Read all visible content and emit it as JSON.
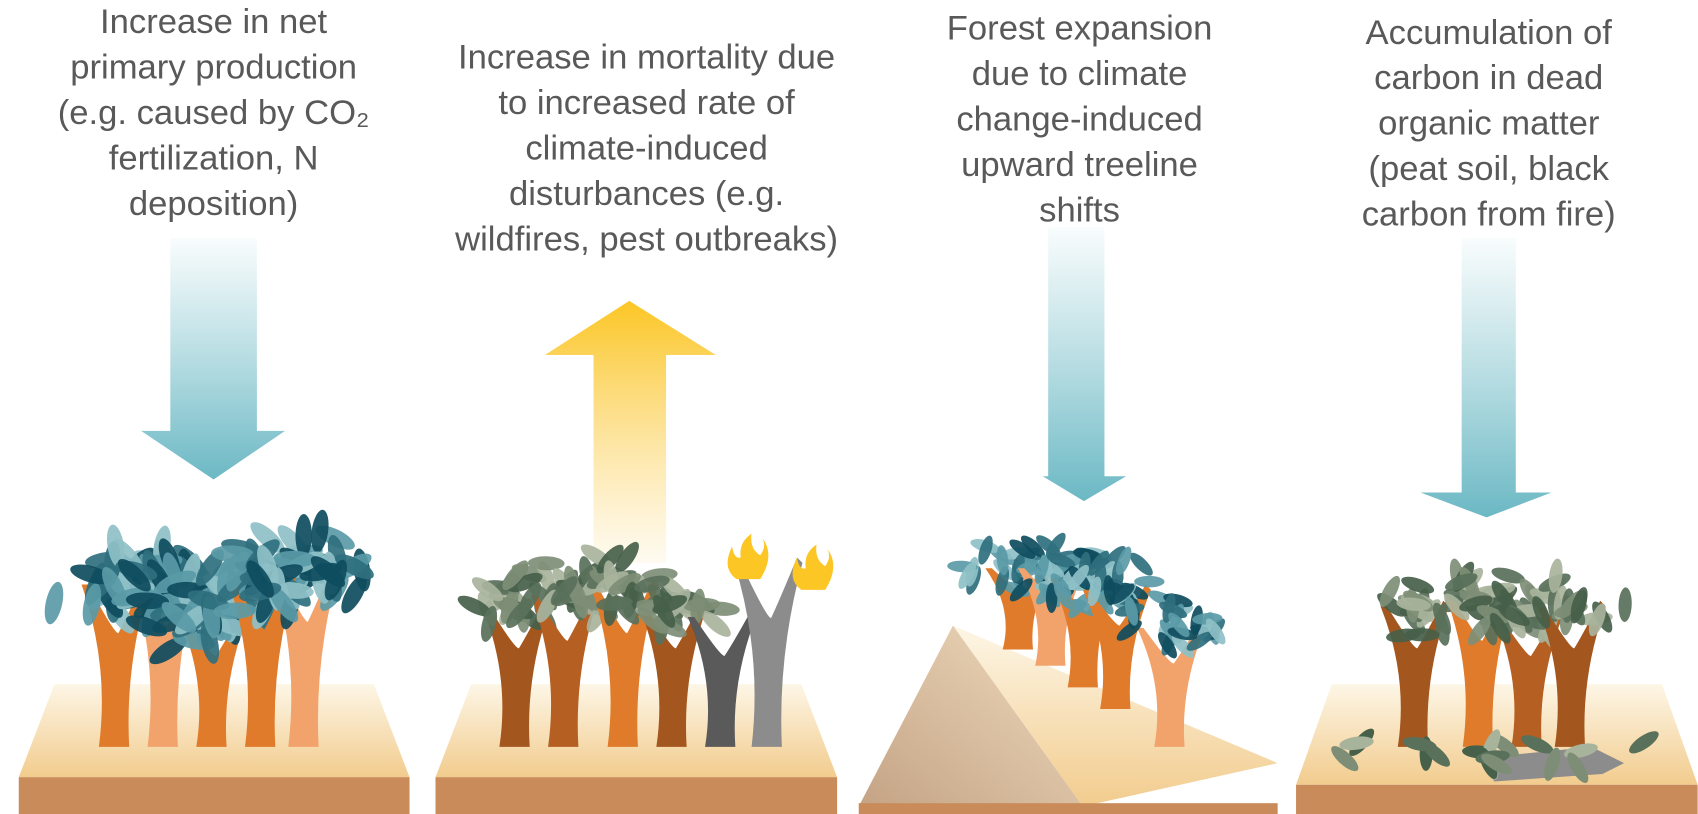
{
  "panels": [
    {
      "lines": [
        "Increase in net",
        "primary production",
        "(e.g. caused by CO₂",
        "fertilization, N",
        "deposition)"
      ]
    },
    {
      "lines": [
        "Increase in mortality due",
        "to increased rate of",
        "climate-induced",
        "disturbances (e.g.",
        "wildfires, pest outbreaks)"
      ]
    },
    {
      "lines": [
        "Forest expansion",
        "due to climate",
        "change-induced",
        "upward treeline",
        "shifts"
      ]
    },
    {
      "lines": [
        "Accumulation of",
        "carbon in dead",
        "organic matter",
        "(peat soil, black",
        "carbon from fire)"
      ]
    }
  ]
}
